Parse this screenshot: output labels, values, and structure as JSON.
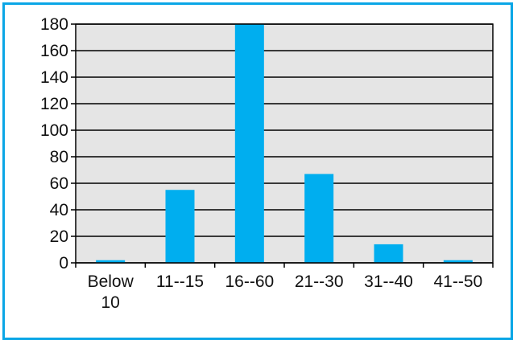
{
  "chart_data": {
    "type": "bar",
    "categories": [
      "Below 10",
      "11--15",
      "16--60",
      "21--30",
      "31--40",
      "41--50"
    ],
    "category_lines": [
      [
        "Below",
        "10"
      ],
      [
        "11--15"
      ],
      [
        "16--60"
      ],
      [
        "21--30"
      ],
      [
        "31--40"
      ],
      [
        "41--50"
      ]
    ],
    "values": [
      2,
      55,
      180,
      67,
      14,
      2
    ],
    "title": "",
    "xlabel": "",
    "ylabel": "",
    "ylim": [
      0,
      180
    ],
    "yticks": [
      0,
      20,
      40,
      60,
      80,
      100,
      120,
      140,
      160,
      180
    ],
    "grid": true,
    "legend": "none"
  },
  "colors": {
    "bar": "#00aeef",
    "plot_background": "#e5e5e5",
    "frame_border": "#0aa6e6",
    "gridline": "#000000"
  }
}
